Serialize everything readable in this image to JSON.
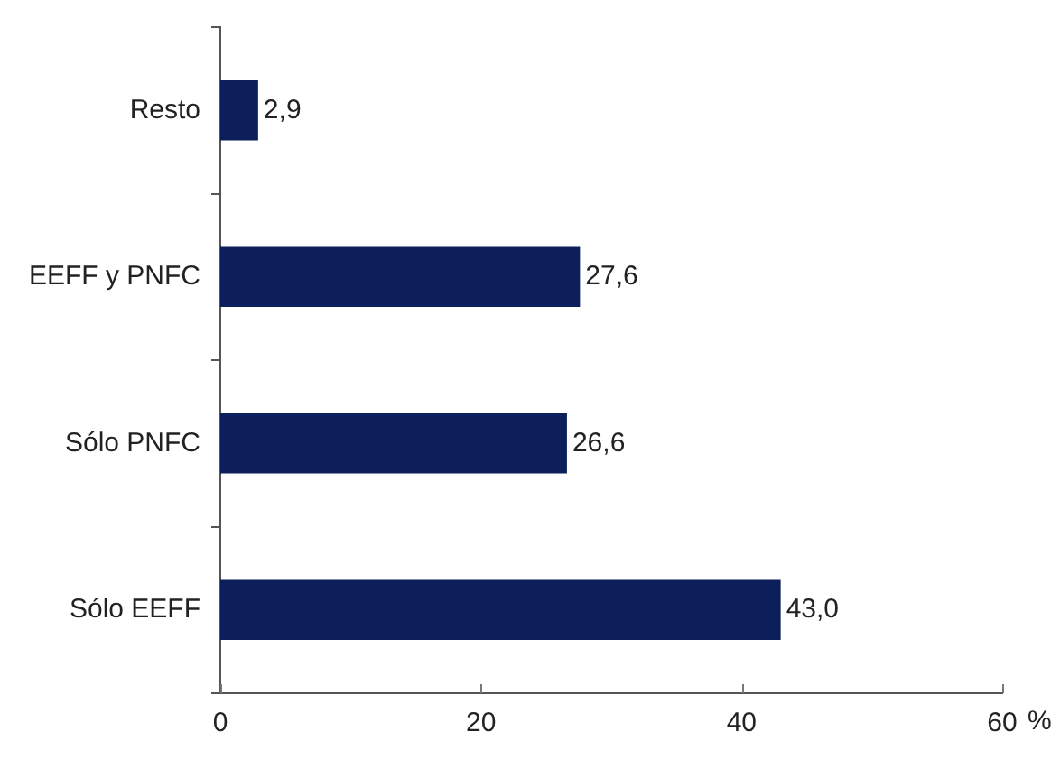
{
  "chart_data": {
    "type": "bar",
    "orientation": "horizontal",
    "categories": [
      "Resto",
      "EEFF y PNFC",
      "Sólo PNFC",
      "Sólo EEFF"
    ],
    "values": [
      2.9,
      27.6,
      26.6,
      43.0
    ],
    "value_labels": [
      "2,9",
      "27,6",
      "26,6",
      "43,0"
    ],
    "color": "#0c1f5b",
    "xlim": [
      0,
      60
    ],
    "xticks": [
      0,
      20,
      40,
      60
    ],
    "xlabel": "%",
    "grid": false,
    "legend": false
  }
}
